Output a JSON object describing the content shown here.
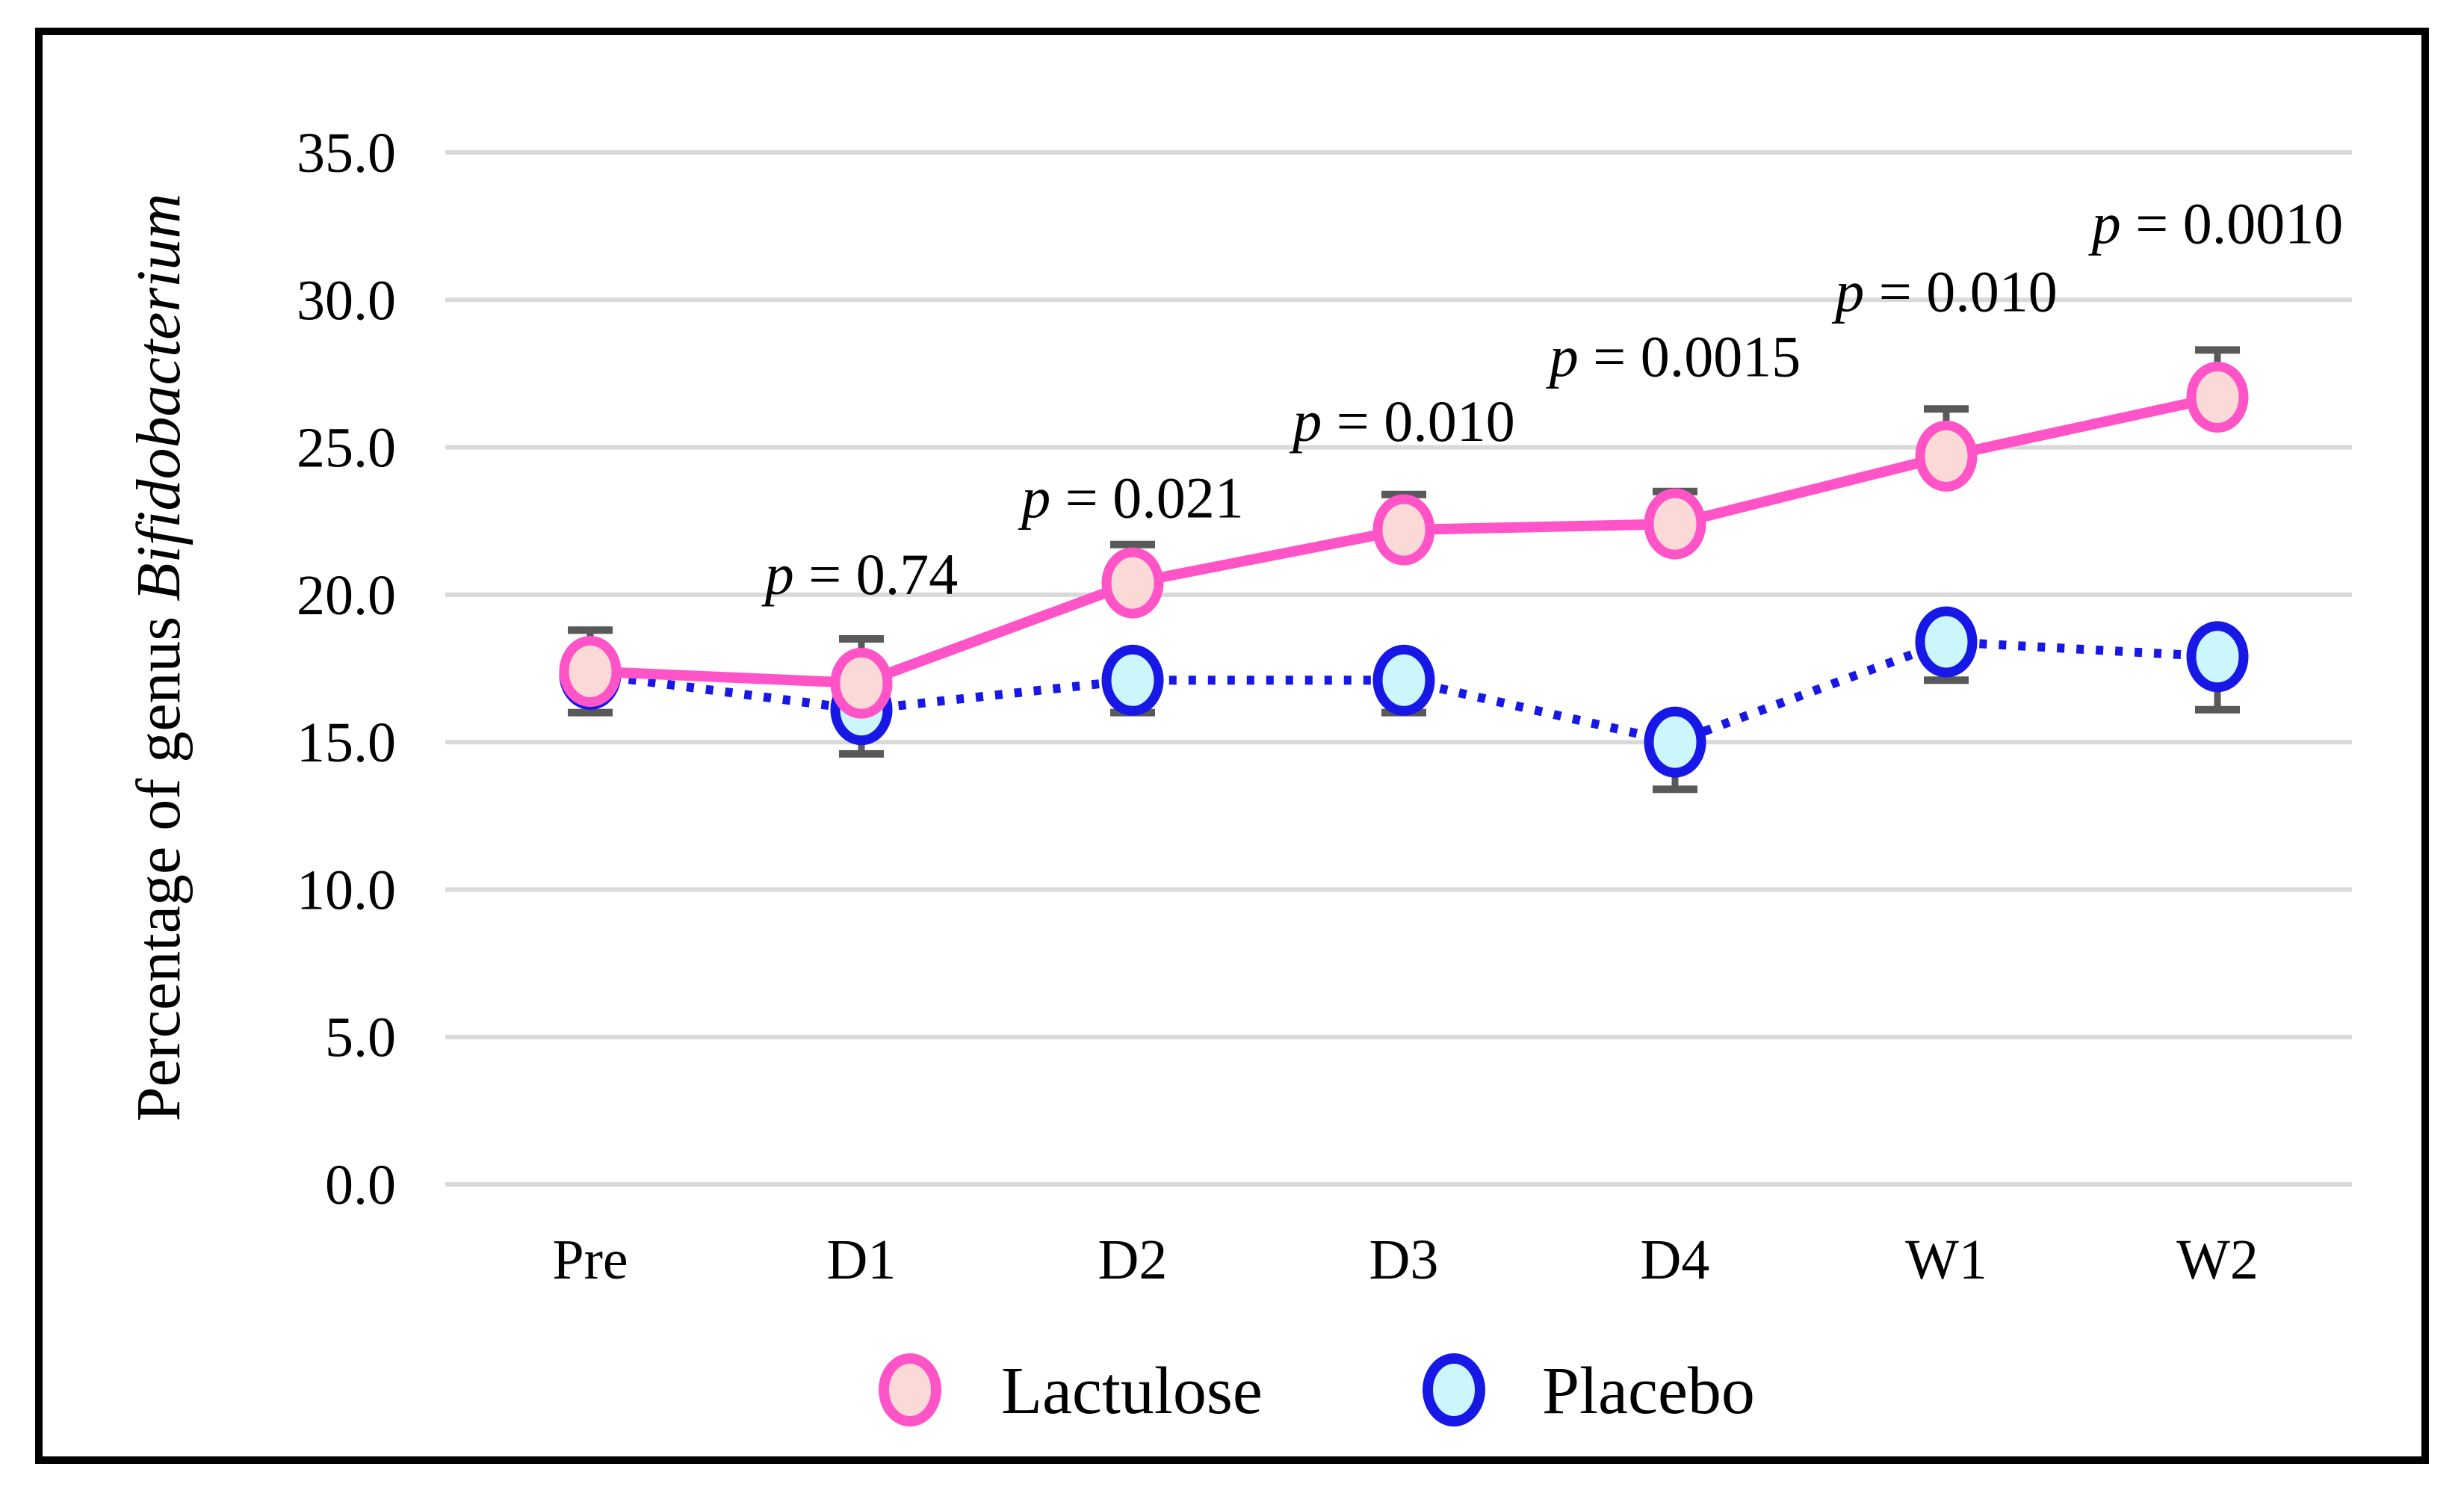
{
  "figure": {
    "description": "Line chart of percentage of genus Bifidobacterium over study time points for Lactulose vs Placebo groups, with one-sided error bars and p-value annotations",
    "frame_color": "#000000",
    "background_color": "#FFFFFF"
  },
  "chart_data": {
    "type": "line",
    "title": "",
    "ylabel": {
      "regular": "Percentage of genus",
      "italic": "Bifidobacterium"
    },
    "xlabel": "",
    "categories": [
      "Pre",
      "D1",
      "D2",
      "D3",
      "D4",
      "W1",
      "W2"
    ],
    "y_ticks": [
      "0.0",
      "5.0",
      "10.0",
      "15.0",
      "20.0",
      "25.0",
      "30.0",
      "35.0"
    ],
    "ylim": [
      0,
      35
    ],
    "grid": "horizontal",
    "series": [
      {
        "name": "Placebo",
        "marker": "circle",
        "line_style": "dotted",
        "line_color": "#1717E6",
        "fill_color": "#CBF6FC",
        "values": [
          17.3,
          16.1,
          17.1,
          17.1,
          15.0,
          18.4,
          17.9
        ],
        "err": [
          1.3,
          1.5,
          1.1,
          1.1,
          1.6,
          1.3,
          1.8
        ],
        "err_dir": "down"
      },
      {
        "name": "Lactulose",
        "marker": "circle",
        "line_style": "solid",
        "line_color": "#FF54C8",
        "fill_color": "#FBD9D6",
        "values": [
          17.4,
          17.0,
          20.4,
          22.2,
          22.4,
          24.7,
          26.7
        ],
        "err": [
          1.4,
          1.5,
          1.3,
          1.2,
          1.1,
          1.6,
          1.6
        ],
        "err_dir": "up"
      }
    ],
    "annotations": [
      {
        "category": "D1",
        "var": "p",
        "rest": " = 0.74",
        "y": 20.7
      },
      {
        "category": "D2",
        "var": "p",
        "rest": " = 0.021",
        "y": 23.3
      },
      {
        "category": "D3",
        "var": "p",
        "rest": " = 0.010",
        "y": 25.9
      },
      {
        "category": "D4",
        "var": "p",
        "rest": " = 0.0015",
        "y": 28.1
      },
      {
        "category": "W1",
        "var": "p",
        "rest": " = 0.010",
        "y": 30.3
      },
      {
        "category": "W2",
        "var": "p",
        "rest": " = 0.0010",
        "y": 32.6
      }
    ],
    "legend": {
      "position": "bottom",
      "items": [
        {
          "label": "Lactulose"
        },
        {
          "label": "Placebo"
        }
      ]
    },
    "colors": {
      "gridline": "#D9D9D9",
      "error_bar": "#595959",
      "text": "#000000",
      "frame": "#000000",
      "background": "#FFFFFF"
    }
  }
}
